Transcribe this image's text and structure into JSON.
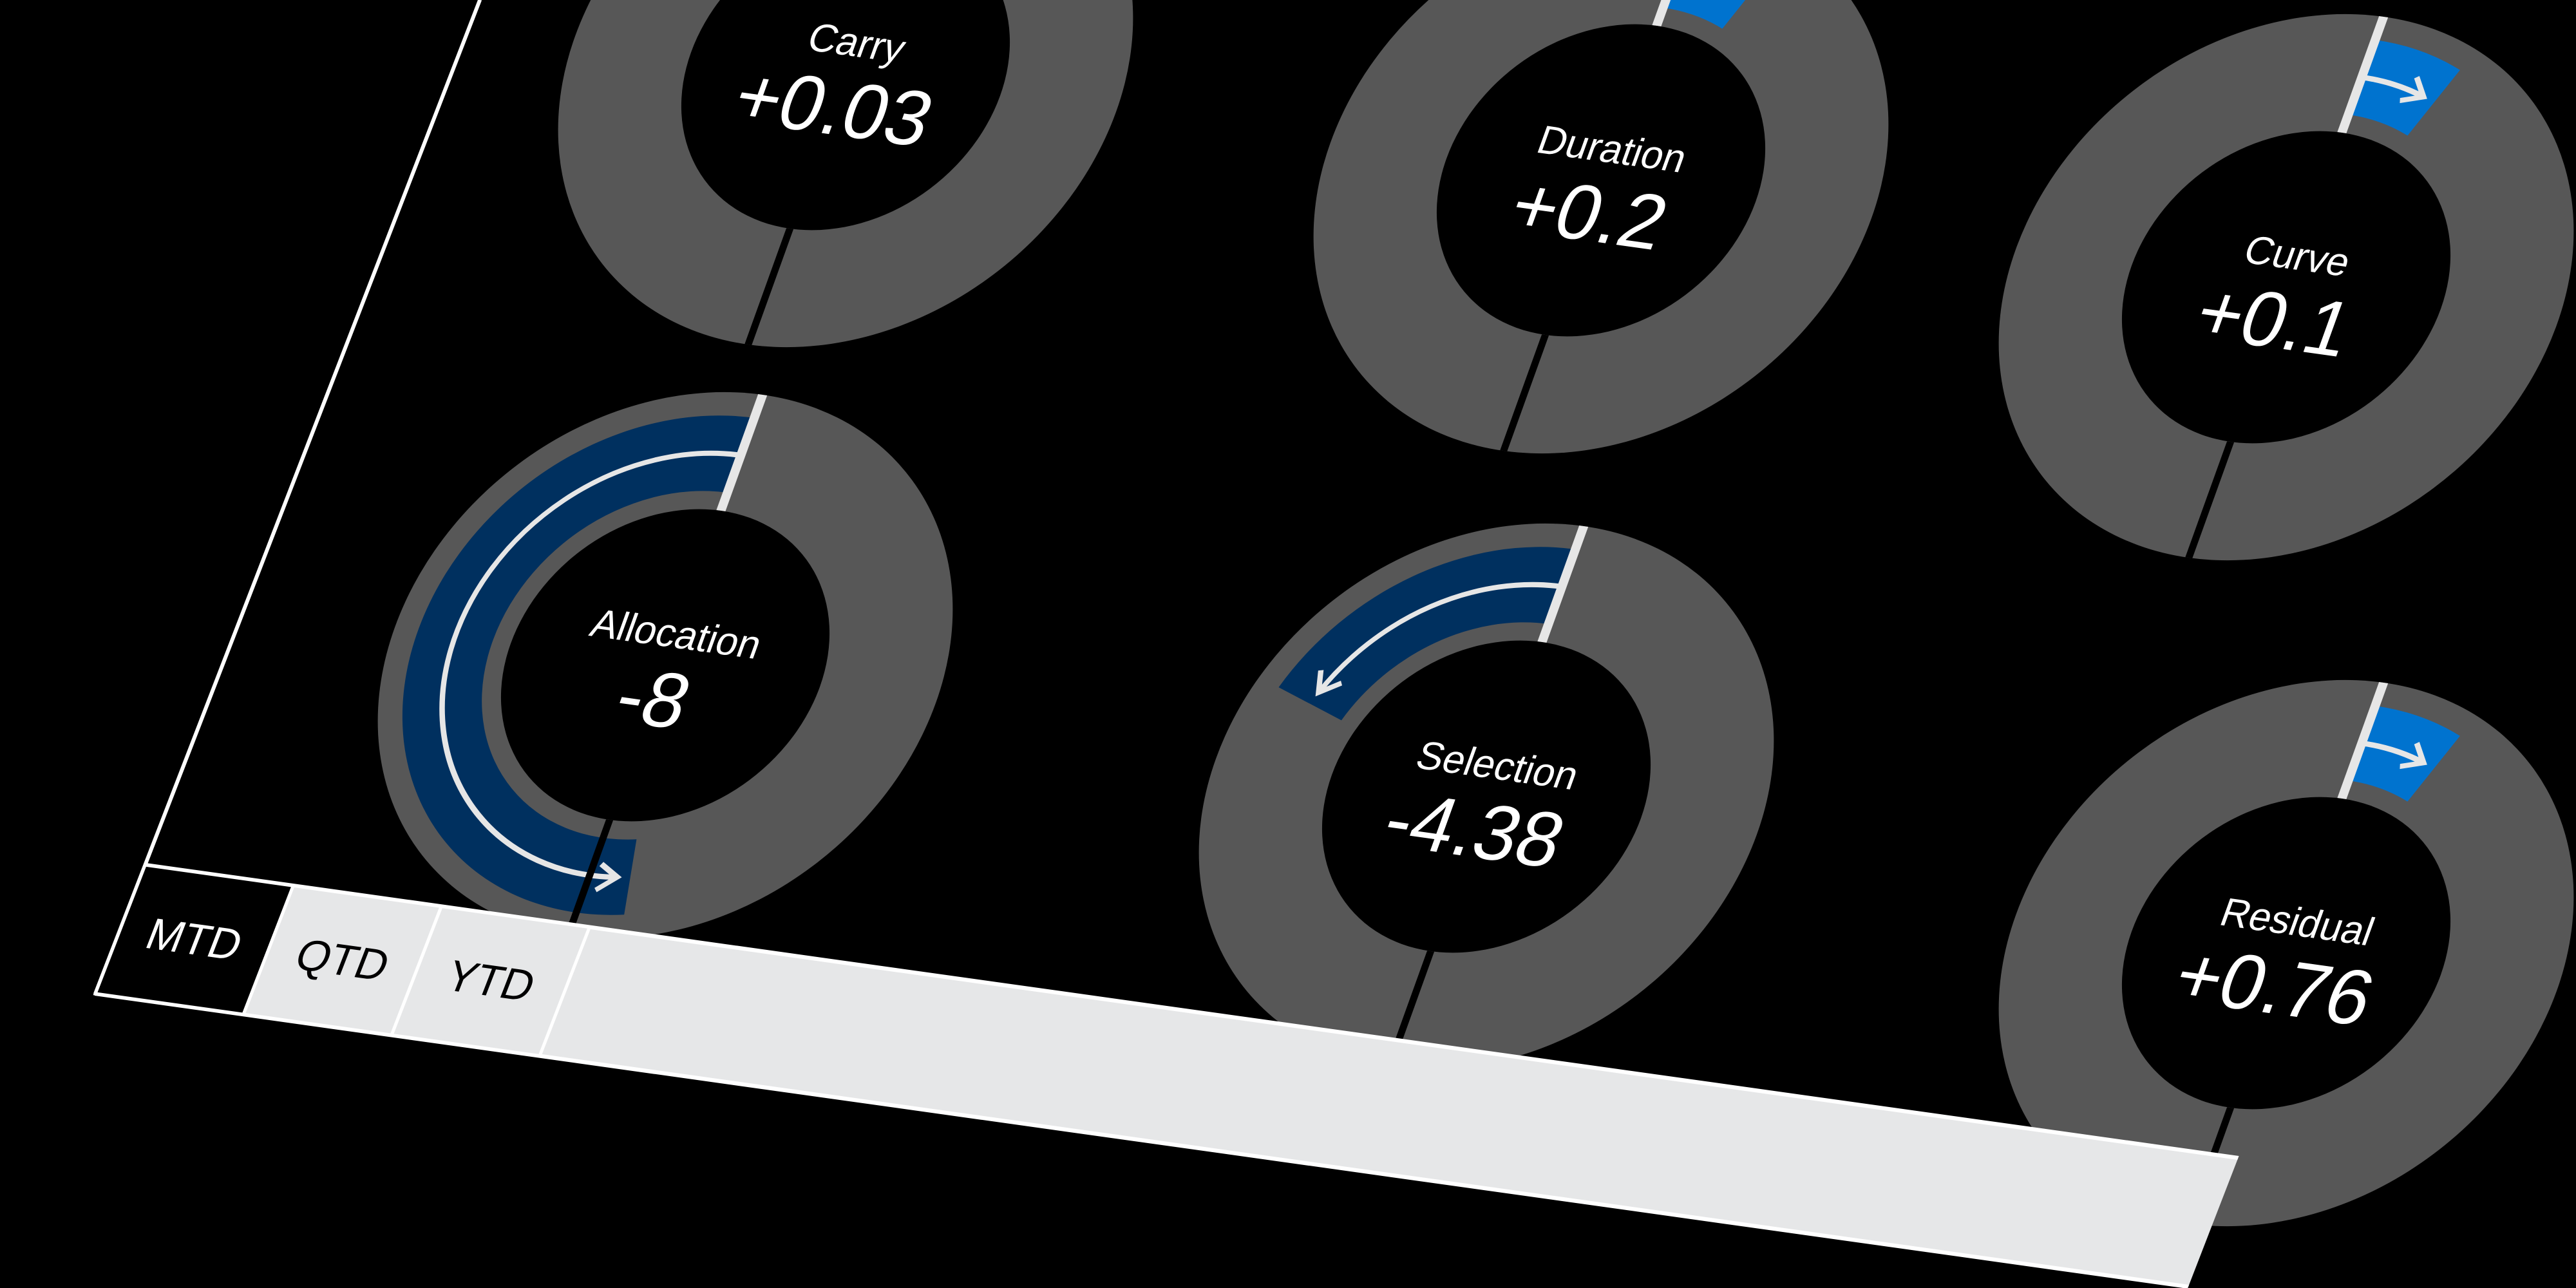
{
  "colors": {
    "ring": "#575757",
    "inner": "#000000",
    "negative": "#00305f",
    "positive": "#0073cf",
    "marker": "#e6e6e6",
    "arrow": "#e6e6e6"
  },
  "gauges": [
    {
      "label": "Carry",
      "value": "+0.03",
      "arc_fraction": 0
    },
    {
      "label": "Duration",
      "value": "+0.2",
      "arc_fraction": 0.06
    },
    {
      "label": "Curve",
      "value": "+0.1",
      "arc_fraction": 0.06
    },
    {
      "label": "Allocation",
      "value": "-8",
      "arc_fraction": -0.53
    },
    {
      "label": "Selection",
      "value": "-4.38",
      "arc_fraction": -0.2
    },
    {
      "label": "Residual",
      "value": "+0.76",
      "arc_fraction": 0.06
    }
  ],
  "tabs": [
    {
      "label": "MTD",
      "active": true
    },
    {
      "label": "QTD",
      "active": false
    },
    {
      "label": "YTD",
      "active": false
    }
  ]
}
